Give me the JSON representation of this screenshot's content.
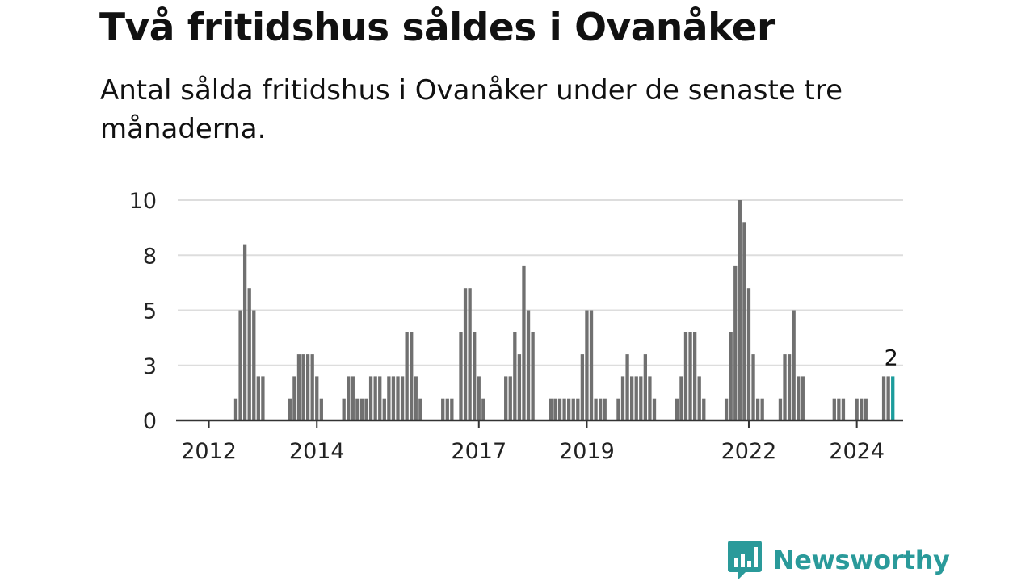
{
  "header": {
    "title": "Två fritidshus såldes i Ovanåker",
    "subtitle": "Antal sålda fritidshus i Ovanåker under de senaste tre månaderna."
  },
  "brand": {
    "name": "Newsworthy",
    "color": "#2a9a9a",
    "icon": "newsworthy-logo-icon"
  },
  "chart_data": {
    "type": "bar",
    "title": "",
    "xlabel": "",
    "ylabel": "",
    "ylim": [
      0,
      10
    ],
    "yticks": [
      {
        "value": 0,
        "label": "0"
      },
      {
        "value": 2.5,
        "label": "3"
      },
      {
        "value": 5,
        "label": "5"
      },
      {
        "value": 7.5,
        "label": "8"
      },
      {
        "value": 10,
        "label": "10"
      }
    ],
    "xticks": [
      "2012",
      "2014",
      "2017",
      "2019",
      "2022",
      "2024"
    ],
    "grid": true,
    "bar_color": "#707070",
    "highlight_color": "#1c9c9c",
    "highlight_label": "2",
    "x_start": "2011-07",
    "x_end": "2024-03",
    "x_unit": "month",
    "values": [
      0,
      0,
      0,
      0,
      0,
      0,
      0,
      0,
      0,
      0,
      0,
      0,
      1,
      5,
      8,
      6,
      5,
      2,
      2,
      0,
      0,
      0,
      0,
      0,
      1,
      2,
      3,
      3,
      3,
      3,
      2,
      1,
      0,
      0,
      0,
      0,
      1,
      2,
      2,
      1,
      1,
      1,
      2,
      2,
      2,
      1,
      2,
      2,
      2,
      2,
      4,
      4,
      2,
      1,
      0,
      0,
      0,
      0,
      1,
      1,
      1,
      0,
      4,
      6,
      6,
      4,
      2,
      1,
      0,
      0,
      0,
      0,
      2,
      2,
      4,
      3,
      7,
      5,
      4,
      0,
      0,
      0,
      1,
      1,
      1,
      1,
      1,
      1,
      1,
      3,
      5,
      5,
      1,
      1,
      1,
      0,
      0,
      1,
      2,
      3,
      2,
      2,
      2,
      3,
      2,
      1,
      0,
      0,
      0,
      0,
      1,
      2,
      4,
      4,
      4,
      2,
      1,
      0,
      0,
      0,
      0,
      1,
      4,
      7,
      10,
      9,
      6,
      3,
      1,
      1,
      0,
      0,
      0,
      1,
      3,
      3,
      5,
      2,
      2,
      0,
      0,
      0,
      0,
      0,
      0,
      1,
      1,
      1,
      0,
      0,
      1,
      1,
      1,
      0,
      0,
      0,
      2,
      2,
      2
    ]
  }
}
